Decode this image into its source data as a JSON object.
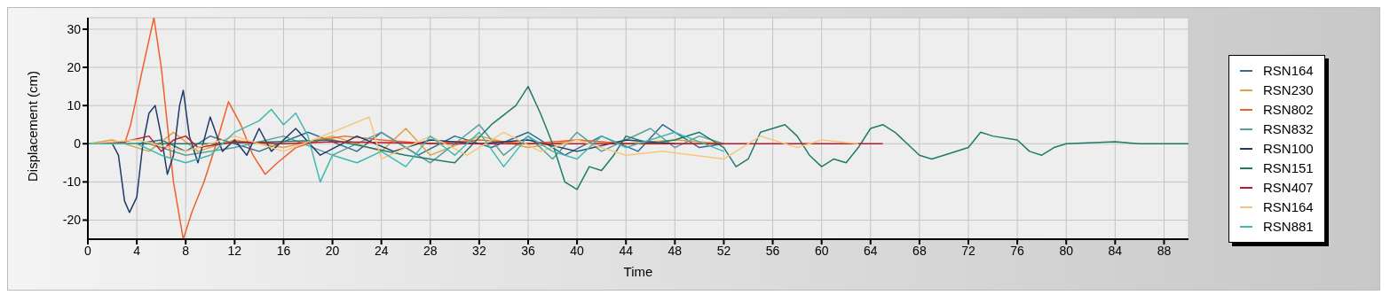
{
  "chart_data": {
    "type": "line",
    "xlabel": "Time",
    "ylabel": "Displacement (cm)",
    "xlim": [
      0,
      90
    ],
    "xticks": [
      0,
      4,
      8,
      12,
      16,
      20,
      24,
      28,
      32,
      36,
      40,
      44,
      48,
      52,
      56,
      60,
      64,
      68,
      72,
      76,
      80,
      84,
      88
    ],
    "ylim": [
      -25,
      33
    ],
    "yticks": [
      -20,
      -10,
      0,
      10,
      20,
      30
    ],
    "grid": true,
    "legend": "right",
    "marker": "none",
    "line_style": "solid",
    "series": [
      {
        "name": "RSN164",
        "color": "#2e6f8e",
        "x": [
          0,
          4,
          6,
          8,
          10,
          14,
          18,
          22,
          24,
          27,
          30,
          33,
          36,
          39,
          42,
          45,
          47,
          48,
          50,
          52
        ],
        "values": [
          0,
          0,
          1,
          -2,
          2,
          -2,
          3,
          -2,
          3,
          -3,
          2,
          -1,
          3,
          -3,
          2,
          -2,
          5,
          3,
          -1,
          0
        ]
      },
      {
        "name": "RSN230",
        "color": "#d9a441",
        "x": [
          0,
          2,
          5,
          7,
          9,
          12,
          16,
          20,
          24,
          26,
          28,
          32,
          36,
          40,
          44,
          48,
          52
        ],
        "values": [
          0,
          1,
          -2,
          3,
          -2,
          1,
          -1,
          2,
          -2,
          4,
          -3,
          2,
          -1,
          1,
          0,
          1,
          0
        ]
      },
      {
        "name": "RSN802",
        "color": "#f0602a",
        "x": [
          0,
          3,
          3.5,
          4.5,
          5.4,
          6,
          6.5,
          7,
          7.8,
          8.5,
          9.5,
          10.5,
          11.5,
          12.5,
          13.5,
          14.5,
          15.5,
          17,
          19,
          21,
          24,
          28,
          32,
          36,
          40,
          44,
          48,
          52
        ],
        "values": [
          0,
          0,
          5,
          20,
          33,
          20,
          5,
          -10,
          -25,
          -18,
          -10,
          0,
          11,
          5,
          -3,
          -8,
          -5,
          -1,
          1,
          2,
          1,
          0,
          1,
          0,
          1,
          0,
          0,
          0
        ]
      },
      {
        "name": "RSN832",
        "color": "#5a9ea0",
        "x": [
          0,
          5,
          8,
          12,
          16,
          20,
          24,
          28,
          30,
          32,
          34,
          36,
          38,
          40,
          42,
          46,
          48,
          50,
          52
        ],
        "values": [
          0,
          0,
          -3,
          -1,
          2,
          -3,
          3,
          -5,
          0,
          5,
          -3,
          2,
          -4,
          3,
          -2,
          4,
          -1,
          2,
          0
        ]
      },
      {
        "name": "RSN100",
        "color": "#1f3a68",
        "x": [
          0,
          2,
          2.5,
          3,
          3.4,
          4,
          4.5,
          5,
          5.5,
          6,
          6.5,
          7,
          7.5,
          7.8,
          8.3,
          9,
          10,
          11,
          12,
          13,
          14,
          15,
          17,
          19,
          22,
          25,
          28,
          32,
          36,
          40,
          44,
          48
        ],
        "values": [
          0,
          0,
          -3,
          -15,
          -18,
          -14,
          0,
          8,
          10,
          2,
          -8,
          -3,
          10,
          14,
          2,
          -5,
          7,
          -2,
          1,
          -3,
          4,
          -2,
          4,
          -3,
          2,
          -2,
          1,
          0,
          1,
          -2,
          1,
          0
        ]
      },
      {
        "name": "RSN151",
        "color": "#1f7a6a",
        "x": [
          0,
          10,
          20,
          26,
          30,
          33,
          35,
          36,
          37,
          38,
          39,
          40,
          41,
          42,
          43,
          44,
          46,
          48,
          50,
          52,
          53,
          54,
          55,
          57,
          58,
          59,
          60,
          61,
          62,
          63,
          64,
          65,
          66,
          68,
          69,
          70,
          72,
          73,
          74,
          76,
          77,
          78,
          79,
          80,
          84,
          86,
          90
        ],
        "values": [
          0,
          0,
          1,
          -3,
          -5,
          5,
          10,
          15,
          8,
          0,
          -10,
          -12,
          -6,
          -7,
          -3,
          2,
          0,
          1,
          3,
          -1,
          -6,
          -4,
          3,
          5,
          2,
          -3,
          -6,
          -4,
          -5,
          -1,
          4,
          5,
          3,
          -3,
          -4,
          -3,
          -1,
          3,
          2,
          1,
          -2,
          -3,
          -1,
          0,
          0.5,
          0,
          0
        ]
      },
      {
        "name": "RSN407",
        "color": "#c0182a",
        "x": [
          0,
          3,
          5,
          6,
          7,
          8,
          9,
          12,
          16,
          20,
          30,
          40,
          50,
          58,
          65
        ],
        "values": [
          0,
          0.5,
          2,
          -2,
          1,
          2,
          -1,
          0.5,
          0,
          0.5,
          0,
          0,
          0,
          0,
          0
        ]
      },
      {
        "name": "RSN164",
        "color": "#f5c77a",
        "x": [
          0,
          4,
          8,
          12,
          16,
          20,
          23,
          24,
          28,
          31,
          34,
          37,
          40,
          44,
          47,
          52,
          55,
          58,
          60,
          63
        ],
        "values": [
          0,
          1,
          -2,
          2,
          -2,
          3,
          7,
          -4,
          2,
          -3,
          3,
          -2,
          1,
          -3,
          -2,
          -4,
          2,
          -1,
          1,
          0
        ]
      },
      {
        "name": "RSN881",
        "color": "#3fb8b0",
        "x": [
          0,
          4,
          6,
          8,
          10,
          12,
          14,
          15,
          16,
          17,
          18,
          19,
          20,
          22,
          24,
          26,
          28,
          30,
          32,
          34,
          36,
          38,
          40,
          42,
          44,
          48,
          52
        ],
        "values": [
          0,
          0,
          -3,
          -5,
          -3,
          3,
          6,
          9,
          5,
          8,
          2,
          -10,
          -3,
          -5,
          -2,
          -6,
          2,
          -3,
          3,
          -6,
          2,
          -2,
          -4,
          2,
          -1,
          3,
          -2
        ]
      }
    ]
  }
}
